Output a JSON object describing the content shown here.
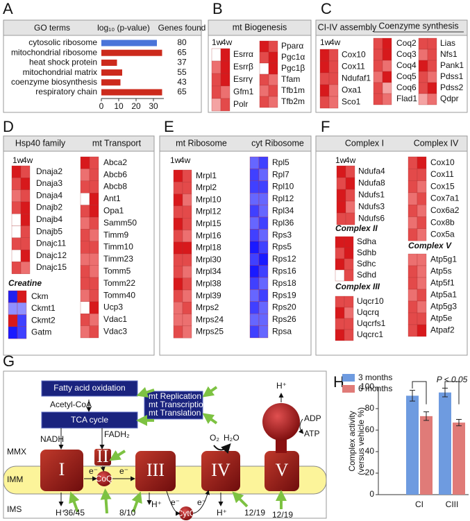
{
  "panel_labels": [
    "A",
    "B",
    "C",
    "D",
    "E",
    "F",
    "G",
    "H"
  ],
  "chart_data": [
    {
      "type": "bar",
      "orientation": "horizontal",
      "headers": [
        "GO terms",
        "log₁₀ (p-value)",
        "Genes found"
      ],
      "categories": [
        "cytosolic ribosome",
        "mitochondrial ribosome",
        "heat shock protein",
        "mitochondrial matrix",
        "coenzyme biosynthesis",
        "respiratory chain"
      ],
      "values": [
        32,
        35,
        9,
        12,
        11,
        35
      ],
      "colors": [
        "#4a74d9",
        "#cc2a1c",
        "#cc2a1c",
        "#cc2a1c",
        "#cc2a1c",
        "#cc2a1c"
      ],
      "genes_found": [
        80,
        65,
        37,
        55,
        43,
        65
      ],
      "xlim": [
        0,
        36
      ],
      "xticks": [
        0,
        10,
        20,
        30
      ]
    },
    {
      "type": "grouped-bar",
      "ylabel": [
        "Complex activity",
        "(versus vehicle %)"
      ],
      "categories": [
        "CI",
        "CIII"
      ],
      "series": [
        {
          "name": "3 months",
          "color": "#6e9be0",
          "values": [
            92,
            95
          ],
          "errors": [
            5,
            4
          ]
        },
        {
          "name": "6 months",
          "color": "#e07b78",
          "values": [
            73,
            67
          ],
          "errors": [
            4,
            3
          ]
        }
      ],
      "ylim": [
        0,
        100
      ],
      "yticks": [
        0,
        20,
        40,
        60,
        80,
        100
      ],
      "annotation": "P < 0.05",
      "legend": "top-left"
    }
  ],
  "heatmaps": {
    "B": {
      "headers": [
        "mt Biogenesis"
      ],
      "timepoints": [
        "1w",
        "4w"
      ],
      "groups": [
        {
          "genes": [
            "Esrrα",
            "Esrrβ",
            "Esrrγ",
            "Gfm1",
            "Polr"
          ],
          "cells": [
            [
              "#ffffff",
              "#d7191c"
            ],
            [
              "#ec7070",
              "#d7191c"
            ],
            [
              "#e34a4a",
              "#d7191c"
            ],
            [
              "#e34a4a",
              "#ec7070"
            ],
            [
              "#f4a3a3",
              "#e34a4a"
            ]
          ]
        },
        {
          "genes": [
            "Pparα",
            "Pgc1α",
            "Pgc1β",
            "Tfam",
            "Tfb1m",
            "Tfb2m"
          ],
          "cells": [
            [
              "#d7191c",
              "#e34a4a"
            ],
            [
              "#e34a4a",
              "#d7191c"
            ],
            [
              "#ffffff",
              "#d7191c"
            ],
            [
              "#e34a4a",
              "#ec7070"
            ],
            [
              "#ec7070",
              "#e34a4a"
            ],
            [
              "#e34a4a",
              "#ec7070"
            ]
          ]
        }
      ]
    },
    "C": {
      "headers": [
        "CI-IV assembly",
        "Coenzyme synthesis"
      ],
      "timepoints": [
        "1w",
        "4w"
      ],
      "groups": [
        {
          "genes": [
            "Cox10",
            "Cox11",
            "Ndufaf1",
            "Oxa1",
            "Sco1"
          ],
          "cells": [
            [
              "#d7191c",
              "#e34a4a"
            ],
            [
              "#d7191c",
              "#e34a4a"
            ],
            [
              "#e34a4a",
              "#e34a4a"
            ],
            [
              "#d7191c",
              "#ec7070"
            ],
            [
              "#e34a4a",
              "#ec7070"
            ]
          ]
        },
        {
          "genes": [
            "Coq2",
            "Coq3",
            "Coq4",
            "Coq5",
            "Coq6",
            "Flad1"
          ],
          "cells": [
            [
              "#e34a4a",
              "#d7191c"
            ],
            [
              "#e34a4a",
              "#d7191c"
            ],
            [
              "#e34a4a",
              "#ec7070"
            ],
            [
              "#ec7070",
              "#d7191c"
            ],
            [
              "#e34a4a",
              "#f4a3a3"
            ],
            [
              "#e34a4a",
              "#ec7070"
            ]
          ]
        },
        {
          "genes": [
            "Lias",
            "Nfs1",
            "Pank1",
            "Pdss1",
            "Pdss2",
            "Qdpr"
          ],
          "cells": [
            [
              "#e34a4a",
              "#e34a4a"
            ],
            [
              "#ec7070",
              "#e34a4a"
            ],
            [
              "#d7191c",
              "#e34a4a"
            ],
            [
              "#e34a4a",
              "#ec7070"
            ],
            [
              "#e34a4a",
              "#d7191c"
            ],
            [
              "#f4a3a3",
              "#ec7070"
            ]
          ]
        }
      ]
    },
    "D": {
      "headers": [
        "Hsp40 family",
        "mt Transport"
      ],
      "timepoints": [
        "1w",
        "4w"
      ],
      "groups": [
        {
          "genes": [
            "Dnaja2",
            "Dnaja3",
            "Dnaja4",
            "Dnajb2",
            "Dnajb4",
            "Dnajb5",
            "Dnajc11",
            "Dnajc12",
            "Dnajc15"
          ],
          "cells": [
            [
              "#d7191c",
              "#e34a4a"
            ],
            [
              "#e34a4a",
              "#d7191c"
            ],
            [
              "#ec7070",
              "#e34a4a"
            ],
            [
              "#e34a4a",
              "#d7191c"
            ],
            [
              "#ffffff",
              "#d7191c"
            ],
            [
              "#ffffff",
              "#e34a4a"
            ],
            [
              "#e34a4a",
              "#e34a4a"
            ],
            [
              "#ffffff",
              "#d7191c"
            ],
            [
              "#e34a4a",
              "#ec7070"
            ]
          ]
        },
        {
          "title": "Creatine",
          "genes": [
            "Ckm",
            "Ckmt1",
            "Ckmt2",
            "Gatm"
          ],
          "cells": [
            [
              "#2020f0",
              "#d7191c"
            ],
            [
              "#9090ff",
              "#9090ff"
            ],
            [
              "#d7191c",
              "#4040ff"
            ],
            [
              "#1a1aff",
              "#4040ff"
            ]
          ]
        },
        {
          "genes": [
            "Abca2",
            "Abcb6",
            "Abcb8",
            "Ant1",
            "Opa1",
            "Samm50",
            "Timm9",
            "Timm10",
            "Timm23",
            "Tomm5",
            "Tomm22",
            "Tomm40",
            "Ucp3",
            "Vdac1",
            "Vdac3"
          ],
          "cells": [
            [
              "#d7191c",
              "#e34a4a"
            ],
            [
              "#ec7070",
              "#e34a4a"
            ],
            [
              "#e34a4a",
              "#e34a4a"
            ],
            [
              "#ffffff",
              "#d7191c"
            ],
            [
              "#e34a4a",
              "#d7191c"
            ],
            [
              "#ec7070",
              "#e34a4a"
            ],
            [
              "#e34a4a",
              "#ec7070"
            ],
            [
              "#e34a4a",
              "#e34a4a"
            ],
            [
              "#ec7070",
              "#ec7070"
            ],
            [
              "#e34a4a",
              "#ec7070"
            ],
            [
              "#e34a4a",
              "#e34a4a"
            ],
            [
              "#ec7070",
              "#e34a4a"
            ],
            [
              "#ffffff",
              "#d7191c"
            ],
            [
              "#e34a4a",
              "#ec7070"
            ],
            [
              "#ec7070",
              "#e34a4a"
            ]
          ]
        }
      ]
    },
    "E": {
      "headers": [
        "mt Ribosome",
        "cyt Ribosome"
      ],
      "timepoints": [
        "1w",
        "4w"
      ],
      "groups": [
        {
          "genes": [
            "Mrpl1",
            "Mrpl2",
            "Mrpl10",
            "Mrpl12",
            "Mrpl15",
            "Mrpl16",
            "Mrpl18",
            "Mrpl30",
            "Mrpl34",
            "Mrpl38",
            "Mrpl39",
            "Mrps2",
            "Mrps24",
            "Mrps25"
          ],
          "cells": [
            [
              "#d7191c",
              "#e34a4a"
            ],
            [
              "#e34a4a",
              "#e34a4a"
            ],
            [
              "#d7191c",
              "#ec7070"
            ],
            [
              "#e34a4a",
              "#e34a4a"
            ],
            [
              "#d7191c",
              "#e34a4a"
            ],
            [
              "#e34a4a",
              "#ec7070"
            ],
            [
              "#d7191c",
              "#d7191c"
            ],
            [
              "#e34a4a",
              "#e34a4a"
            ],
            [
              "#e34a4a",
              "#ec7070"
            ],
            [
              "#d7191c",
              "#e34a4a"
            ],
            [
              "#e34a4a",
              "#ec7070"
            ],
            [
              "#ec7070",
              "#e34a4a"
            ],
            [
              "#ec7070",
              "#ec7070"
            ],
            [
              "#e34a4a",
              "#ec7070"
            ]
          ]
        },
        {
          "genes": [
            "Rpl5",
            "Rpl7",
            "Rpl10",
            "Rpl12",
            "Rpl34",
            "Rpl36",
            "Rps3",
            "Rps5",
            "Rps12",
            "Rps16",
            "Rps18",
            "Rps19",
            "Rps20",
            "Rps26",
            "Rpsa"
          ],
          "cells": [
            [
              "#6666ff",
              "#4040ff"
            ],
            [
              "#4040ff",
              "#6666ff"
            ],
            [
              "#4040ff",
              "#4040ff"
            ],
            [
              "#6666ff",
              "#6666ff"
            ],
            [
              "#4040ff",
              "#6666ff"
            ],
            [
              "#6666ff",
              "#4040ff"
            ],
            [
              "#4040ff",
              "#6666ff"
            ],
            [
              "#1a1aff",
              "#4040ff"
            ],
            [
              "#4040ff",
              "#1a1aff"
            ],
            [
              "#1a1aff",
              "#4040ff"
            ],
            [
              "#4040ff",
              "#6666ff"
            ],
            [
              "#6666ff",
              "#4040ff"
            ],
            [
              "#4040ff",
              "#6666ff"
            ],
            [
              "#6666ff",
              "#6666ff"
            ],
            [
              "#4040ff",
              "#6666ff"
            ]
          ]
        }
      ]
    },
    "F": {
      "headers": [
        "Complex I",
        "Complex IV"
      ],
      "timepoints": [
        "1w",
        "4w"
      ],
      "groups": [
        {
          "genes": [
            "Ndufa4",
            "Ndufa8",
            "Ndufs1",
            "Ndufs3",
            "Ndufs6"
          ],
          "cells": [
            [
              "#d7191c",
              "#e34a4a"
            ],
            [
              "#e34a4a",
              "#d7191c"
            ],
            [
              "#d7191c",
              "#e34a4a"
            ],
            [
              "#d7191c",
              "#ec7070"
            ],
            [
              "#e34a4a",
              "#e34a4a"
            ]
          ]
        },
        {
          "title": "Complex II",
          "genes": [
            "Sdha",
            "Sdhb",
            "Sdhc",
            "Sdhd"
          ],
          "cells": [
            [
              "#d7191c",
              "#d7191c"
            ],
            [
              "#e34a4a",
              "#d7191c"
            ],
            [
              "#d7191c",
              "#e34a4a"
            ],
            [
              "#ffffff",
              "#e34a4a"
            ]
          ]
        },
        {
          "title": "Complex III",
          "genes": [
            "Uqcr10",
            "Uqcrq",
            "Uqcrfs1",
            "Uqcrc1"
          ],
          "cells": [
            [
              "#e34a4a",
              "#e34a4a"
            ],
            [
              "#d7191c",
              "#ec7070"
            ],
            [
              "#e34a4a",
              "#e34a4a"
            ],
            [
              "#d7191c",
              "#e34a4a"
            ]
          ]
        },
        {
          "genes": [
            "Cox10",
            "Cox11",
            "Cox15",
            "Cox7a1",
            "Cox6a2",
            "Cox8b",
            "Cox5a"
          ],
          "cells": [
            [
              "#e34a4a",
              "#d7191c"
            ],
            [
              "#e34a4a",
              "#e34a4a"
            ],
            [
              "#e34a4a",
              "#ec7070"
            ],
            [
              "#ec7070",
              "#e34a4a"
            ],
            [
              "#e34a4a",
              "#ec7070"
            ],
            [
              "#ec7070",
              "#e34a4a"
            ],
            [
              "#e34a4a",
              "#ec7070"
            ]
          ]
        },
        {
          "title": "Complex V",
          "genes": [
            "Atp5g1",
            "Atp5s",
            "Atp5f1",
            "Atp5a1",
            "Atp5g3",
            "Atp5e",
            "Atpaf2"
          ],
          "cells": [
            [
              "#ec7070",
              "#ec7070"
            ],
            [
              "#e34a4a",
              "#ec7070"
            ],
            [
              "#e34a4a",
              "#ec7070"
            ],
            [
              "#ec7070",
              "#e34a4a"
            ],
            [
              "#e34a4a",
              "#ec7070"
            ],
            [
              "#e34a4a",
              "#e34a4a"
            ],
            [
              "#e34a4a",
              "#d7191c"
            ]
          ]
        }
      ]
    }
  },
  "diagram": {
    "pathway": [
      "Fatty acid oxidation",
      "Acetyl-CoA",
      "TCA cycle",
      "NADH",
      "FADH₂"
    ],
    "regulation": [
      "mt Replication",
      "mt Transcription",
      "mt Translation"
    ],
    "compartments": [
      "MMX",
      "IMM",
      "IMS"
    ],
    "complexes": [
      "I",
      "II",
      "III",
      "IV",
      "V"
    ],
    "carriers": [
      "CoQ",
      "CytC"
    ],
    "electrons": [
      "e⁻",
      "e⁻",
      "e⁻",
      "e⁻"
    ],
    "protons": [
      "H⁺",
      "H⁺",
      "H⁺",
      "H⁺"
    ],
    "oxygen": [
      "O₂",
      "H₂O"
    ],
    "atp": [
      "ADP",
      "ATP"
    ],
    "fractions": [
      "36/45",
      "8/10",
      "12/19",
      "12/19"
    ]
  }
}
